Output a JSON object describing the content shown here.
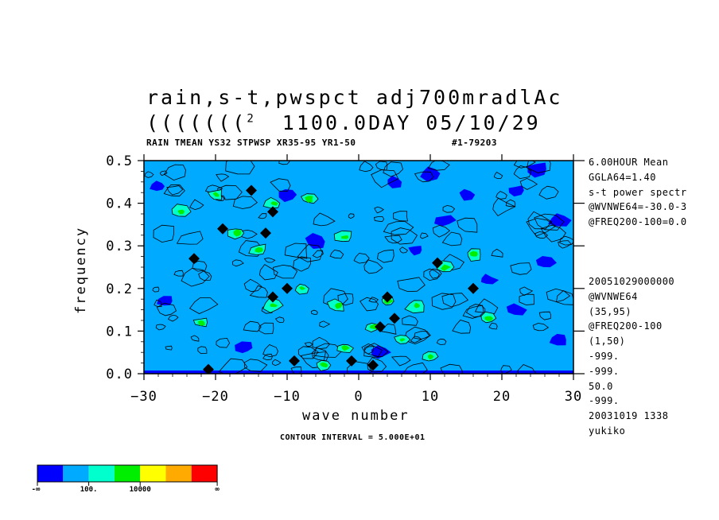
{
  "title_line1": "rain,s-t,pwspct  adj700mradlAc",
  "title_line2_prefix": "(((((((",
  "title_line2_sup": "2",
  "title_line2_rest": "1100.0DAY 05/10/29",
  "subtitle": "RAIN TMEAN YS32 STPWSP XR35-95 YR1-50",
  "run_id": "#1-79203",
  "contour_interval": "CONTOUR INTERVAL = 5.000E+01",
  "info_top": [
    "6.00HOUR Mean",
    "GGLA64=1.40",
    "s-t power spectr",
    "@WVNWE64=-30.0-3",
    "@FREQ200-100=0.0"
  ],
  "info_bottom": [
    "20051029000000",
    "@WVNWE64",
    "(35,95)",
    "@FREQ200-100",
    "(1,50)",
    "-999.",
    "-999.",
    "50.0",
    "-999.",
    "20031019    1338",
    "yukiko"
  ],
  "colorbar": {
    "colors": [
      "#0000ff",
      "#00aaff",
      "#00ffcc",
      "#00ee00",
      "#ffff00",
      "#ffaa00",
      "#ff0000"
    ],
    "labels": [
      "-∞",
      "100.",
      "10000",
      "∞"
    ]
  },
  "chart_data": {
    "type": "heatmap",
    "title": "rain,s-t,pwspct  adj700mradlAc",
    "xlabel": "wave number",
    "ylabel": "frequency",
    "xlim": [
      -30,
      30
    ],
    "ylim": [
      0.0,
      0.5
    ],
    "x_ticks": [
      "−30",
      "−20",
      "−10",
      "0",
      "10",
      "20",
      "30"
    ],
    "x_tick_values": [
      -30,
      -20,
      -10,
      0,
      10,
      20,
      30
    ],
    "y_ticks": [
      "0.0",
      "0.1",
      "0.2",
      "0.3",
      "0.4",
      "0.5"
    ],
    "y_tick_values": [
      0.0,
      0.1,
      0.2,
      0.3,
      0.4,
      0.5
    ],
    "background_level": "100.",
    "low_patches": [
      {
        "x": 25,
        "y": 0.48
      },
      {
        "x": 28,
        "y": 0.36
      },
      {
        "x": 15,
        "y": 0.42
      },
      {
        "x": 5,
        "y": 0.45
      },
      {
        "x": -28,
        "y": 0.44
      },
      {
        "x": 22,
        "y": 0.15
      },
      {
        "x": 28,
        "y": 0.08
      },
      {
        "x": 18,
        "y": 0.22
      },
      {
        "x": -27,
        "y": 0.17
      },
      {
        "x": 3,
        "y": 0.05
      },
      {
        "x": 12,
        "y": 0.36
      },
      {
        "x": -6,
        "y": 0.31
      },
      {
        "x": 22,
        "y": 0.43
      },
      {
        "x": 8,
        "y": 0.29
      },
      {
        "x": -16,
        "y": 0.06
      },
      {
        "x": 26,
        "y": 0.26
      },
      {
        "x": 10,
        "y": 0.47
      },
      {
        "x": -10,
        "y": 0.42
      }
    ],
    "high_patches": [
      {
        "x": -20,
        "y": 0.42
      },
      {
        "x": -12,
        "y": 0.4
      },
      {
        "x": -7,
        "y": 0.41
      },
      {
        "x": -14,
        "y": 0.29
      },
      {
        "x": -2,
        "y": 0.32
      },
      {
        "x": -8,
        "y": 0.2
      },
      {
        "x": -3,
        "y": 0.16
      },
      {
        "x": 2,
        "y": 0.11
      },
      {
        "x": 4,
        "y": 0.17
      },
      {
        "x": 8,
        "y": 0.16
      },
      {
        "x": -12,
        "y": 0.16
      },
      {
        "x": -22,
        "y": 0.12
      },
      {
        "x": 12,
        "y": 0.25
      },
      {
        "x": -2,
        "y": 0.06
      },
      {
        "x": 6,
        "y": 0.08
      },
      {
        "x": -17,
        "y": 0.33
      },
      {
        "x": 16,
        "y": 0.28
      },
      {
        "x": -5,
        "y": 0.02
      },
      {
        "x": 18,
        "y": 0.13
      },
      {
        "x": -25,
        "y": 0.38
      },
      {
        "x": 10,
        "y": 0.04
      }
    ],
    "peak_marks": [
      {
        "x": -19,
        "y": 0.34
      },
      {
        "x": -13,
        "y": 0.33
      },
      {
        "x": -12,
        "y": 0.38
      },
      {
        "x": -15,
        "y": 0.43
      },
      {
        "x": -23,
        "y": 0.27
      },
      {
        "x": -10,
        "y": 0.2
      },
      {
        "x": -12,
        "y": 0.18
      },
      {
        "x": 3,
        "y": 0.11
      },
      {
        "x": 5,
        "y": 0.13
      },
      {
        "x": -1,
        "y": 0.03
      },
      {
        "x": 2,
        "y": 0.02
      },
      {
        "x": -9,
        "y": 0.03
      },
      {
        "x": 11,
        "y": 0.26
      },
      {
        "x": 4,
        "y": 0.18
      },
      {
        "x": 16,
        "y": 0.2
      },
      {
        "x": -21,
        "y": 0.01
      }
    ]
  }
}
